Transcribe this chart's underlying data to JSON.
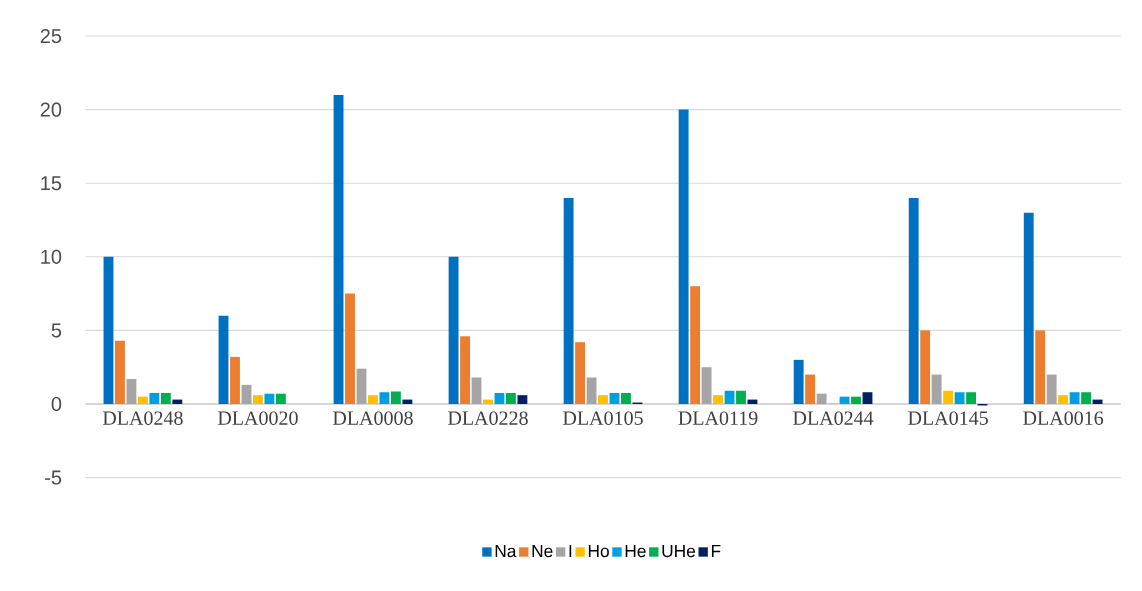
{
  "chart_data": {
    "type": "bar",
    "categories": [
      "DLA0248",
      "DLA0020",
      "DLA0008",
      "DLA0228",
      "DLA0105",
      "DLA0119",
      "DLA0244",
      "DLA0145",
      "DLA0016"
    ],
    "series": [
      {
        "name": "Na",
        "color": "#0070c0",
        "values": [
          10,
          6,
          21,
          10,
          14,
          20,
          3,
          14,
          13
        ]
      },
      {
        "name": "Ne",
        "color": "#ed7d31",
        "values": [
          4.3,
          3.2,
          7.5,
          4.6,
          4.2,
          8,
          2,
          5,
          5
        ]
      },
      {
        "name": "I",
        "color": "#a5a5a5",
        "values": [
          1.7,
          1.3,
          2.4,
          1.8,
          1.8,
          2.5,
          0.7,
          2,
          2
        ]
      },
      {
        "name": "Ho",
        "color": "#ffc000",
        "values": [
          0.5,
          0.6,
          0.6,
          0.3,
          0.6,
          0.6,
          0.05,
          0.9,
          0.6
        ]
      },
      {
        "name": "He",
        "color": "#00a0e0",
        "values": [
          0.75,
          0.7,
          0.8,
          0.75,
          0.75,
          0.9,
          0.5,
          0.8,
          0.8
        ]
      },
      {
        "name": "UHe",
        "color": "#00b050",
        "values": [
          0.75,
          0.7,
          0.85,
          0.75,
          0.75,
          0.9,
          0.5,
          0.8,
          0.8
        ]
      },
      {
        "name": "F",
        "color": "#002060",
        "values": [
          0.3,
          null,
          0.3,
          0.6,
          0.1,
          0.3,
          0.8,
          -0.1,
          0.3
        ]
      }
    ],
    "ylim": [
      -5,
      25
    ],
    "yticks": [
      -5,
      0,
      5,
      10,
      15,
      20,
      25
    ],
    "grid": "y",
    "legend": "bottom"
  }
}
